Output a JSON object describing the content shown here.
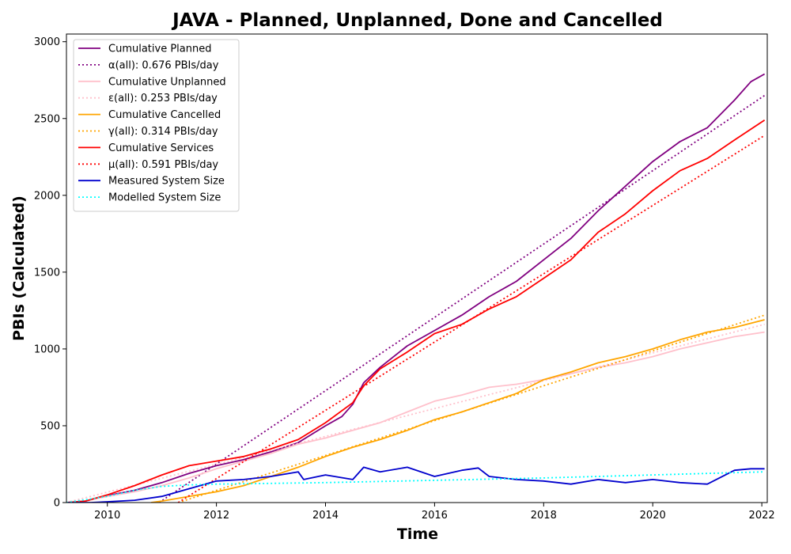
{
  "chart_data": {
    "type": "line",
    "title": "JAVA - Planned, Unplanned, Done  and Cancelled",
    "xlabel": "Time",
    "ylabel": "PBIs (Calculated)",
    "xlim": [
      2009.25,
      2022.1
    ],
    "ylim": [
      0,
      3050
    ],
    "xticks": [
      "2010",
      "2012",
      "2014",
      "2016",
      "2018",
      "2020",
      "2022"
    ],
    "yticks": [
      0,
      500,
      1000,
      1500,
      2000,
      2500,
      3000
    ],
    "legend_position": "top-left",
    "grid": false,
    "series": [
      {
        "name": "Cumulative Planned",
        "color": "#800080",
        "style": "solid",
        "points": [
          [
            2009.25,
            0
          ],
          [
            2009.6,
            10
          ],
          [
            2010,
            45
          ],
          [
            2010.5,
            80
          ],
          [
            2011,
            130
          ],
          [
            2011.5,
            190
          ],
          [
            2012,
            240
          ],
          [
            2012.5,
            280
          ],
          [
            2013,
            330
          ],
          [
            2013.5,
            390
          ],
          [
            2014,
            500
          ],
          [
            2014.3,
            560
          ],
          [
            2014.5,
            640
          ],
          [
            2014.7,
            780
          ],
          [
            2015,
            880
          ],
          [
            2015.5,
            1020
          ],
          [
            2016,
            1120
          ],
          [
            2016.5,
            1220
          ],
          [
            2017,
            1340
          ],
          [
            2017.5,
            1440
          ],
          [
            2018,
            1580
          ],
          [
            2018.5,
            1720
          ],
          [
            2019,
            1900
          ],
          [
            2019.5,
            2060
          ],
          [
            2020,
            2220
          ],
          [
            2020.5,
            2350
          ],
          [
            2021,
            2440
          ],
          [
            2021.5,
            2620
          ],
          [
            2021.8,
            2740
          ],
          [
            2022.05,
            2790
          ]
        ]
      },
      {
        "name": "α(all): 0.676 PBIs/day",
        "color": "#800080",
        "style": "dotted",
        "points": [
          [
            2010.95,
            0
          ],
          [
            2022.05,
            2650
          ]
        ]
      },
      {
        "name": "Cumulative Unplanned",
        "color": "#ffc0cb",
        "style": "solid",
        "points": [
          [
            2009.25,
            0
          ],
          [
            2009.6,
            10
          ],
          [
            2010,
            40
          ],
          [
            2010.5,
            70
          ],
          [
            2011,
            110
          ],
          [
            2011.5,
            160
          ],
          [
            2012,
            220
          ],
          [
            2012.5,
            270
          ],
          [
            2013,
            320
          ],
          [
            2013.5,
            380
          ],
          [
            2014,
            420
          ],
          [
            2014.5,
            470
          ],
          [
            2015,
            520
          ],
          [
            2015.5,
            590
          ],
          [
            2016,
            660
          ],
          [
            2016.5,
            700
          ],
          [
            2017,
            750
          ],
          [
            2017.5,
            770
          ],
          [
            2018,
            800
          ],
          [
            2018.5,
            840
          ],
          [
            2019,
            880
          ],
          [
            2019.5,
            910
          ],
          [
            2020,
            950
          ],
          [
            2020.5,
            1000
          ],
          [
            2021,
            1040
          ],
          [
            2021.5,
            1080
          ],
          [
            2022.05,
            1110
          ]
        ]
      },
      {
        "name": "ε(all): 0.253 PBIs/day",
        "color": "#ffc0cb",
        "style": "dotted",
        "points": [
          [
            2009.25,
            0
          ],
          [
            2022.05,
            1160
          ]
        ]
      },
      {
        "name": "Cumulative Cancelled",
        "color": "#ffa500",
        "style": "solid",
        "points": [
          [
            2010.8,
            0
          ],
          [
            2011,
            10
          ],
          [
            2011.5,
            40
          ],
          [
            2012,
            70
          ],
          [
            2012.5,
            110
          ],
          [
            2013,
            170
          ],
          [
            2013.5,
            230
          ],
          [
            2014,
            300
          ],
          [
            2014.5,
            360
          ],
          [
            2015,
            410
          ],
          [
            2015.5,
            470
          ],
          [
            2016,
            540
          ],
          [
            2016.5,
            590
          ],
          [
            2017,
            650
          ],
          [
            2017.5,
            710
          ],
          [
            2018,
            800
          ],
          [
            2018.5,
            850
          ],
          [
            2019,
            910
          ],
          [
            2019.5,
            950
          ],
          [
            2020,
            1000
          ],
          [
            2020.5,
            1060
          ],
          [
            2021,
            1110
          ],
          [
            2021.5,
            1140
          ],
          [
            2022.05,
            1190
          ]
        ]
      },
      {
        "name": "γ(all): 0.314 PBIs/day",
        "color": "#ffa500",
        "style": "dotted",
        "points": [
          [
            2011.3,
            0
          ],
          [
            2022.05,
            1220
          ]
        ]
      },
      {
        "name": "Cumulative Services",
        "color": "#ff0000",
        "style": "solid",
        "points": [
          [
            2009.25,
            0
          ],
          [
            2009.6,
            10
          ],
          [
            2010,
            50
          ],
          [
            2010.5,
            110
          ],
          [
            2011,
            180
          ],
          [
            2011.5,
            240
          ],
          [
            2012,
            270
          ],
          [
            2012.5,
            300
          ],
          [
            2013,
            350
          ],
          [
            2013.5,
            410
          ],
          [
            2014,
            520
          ],
          [
            2014.5,
            650
          ],
          [
            2014.7,
            760
          ],
          [
            2015,
            870
          ],
          [
            2015.5,
            980
          ],
          [
            2016,
            1100
          ],
          [
            2016.5,
            1160
          ],
          [
            2017,
            1260
          ],
          [
            2017.5,
            1340
          ],
          [
            2018,
            1460
          ],
          [
            2018.5,
            1580
          ],
          [
            2019,
            1760
          ],
          [
            2019.5,
            1880
          ],
          [
            2020,
            2030
          ],
          [
            2020.5,
            2160
          ],
          [
            2021,
            2240
          ],
          [
            2021.5,
            2360
          ],
          [
            2022.05,
            2490
          ]
        ]
      },
      {
        "name": "μ(all): 0.591 PBIs/day",
        "color": "#ff0000",
        "style": "dotted",
        "points": [
          [
            2011.3,
            0
          ],
          [
            2022.05,
            2390
          ]
        ]
      },
      {
        "name": "Measured System Size",
        "color": "#0000cd",
        "style": "solid",
        "points": [
          [
            2009.25,
            0
          ],
          [
            2009.7,
            0
          ],
          [
            2010,
            5
          ],
          [
            2010.5,
            15
          ],
          [
            2011,
            40
          ],
          [
            2011.5,
            90
          ],
          [
            2012,
            140
          ],
          [
            2012.5,
            150
          ],
          [
            2013,
            170
          ],
          [
            2013.5,
            200
          ],
          [
            2013.6,
            150
          ],
          [
            2014,
            180
          ],
          [
            2014.5,
            150
          ],
          [
            2014.7,
            230
          ],
          [
            2015,
            200
          ],
          [
            2015.5,
            230
          ],
          [
            2016,
            170
          ],
          [
            2016.5,
            210
          ],
          [
            2016.8,
            225
          ],
          [
            2017,
            170
          ],
          [
            2017.5,
            150
          ],
          [
            2018,
            140
          ],
          [
            2018.5,
            120
          ],
          [
            2019,
            150
          ],
          [
            2019.5,
            130
          ],
          [
            2020,
            150
          ],
          [
            2020.5,
            130
          ],
          [
            2021,
            120
          ],
          [
            2021.5,
            210
          ],
          [
            2021.8,
            220
          ],
          [
            2022.05,
            220
          ]
        ]
      },
      {
        "name": "Modelled System Size",
        "color": "#00ffff",
        "style": "dotted",
        "points": [
          [
            2009.25,
            0
          ],
          [
            2010,
            40
          ],
          [
            2010.5,
            80
          ],
          [
            2011,
            105
          ],
          [
            2011.5,
            115
          ],
          [
            2012,
            120
          ],
          [
            2014,
            130
          ],
          [
            2016,
            145
          ],
          [
            2018,
            160
          ],
          [
            2020,
            180
          ],
          [
            2022.05,
            200
          ]
        ]
      }
    ]
  }
}
